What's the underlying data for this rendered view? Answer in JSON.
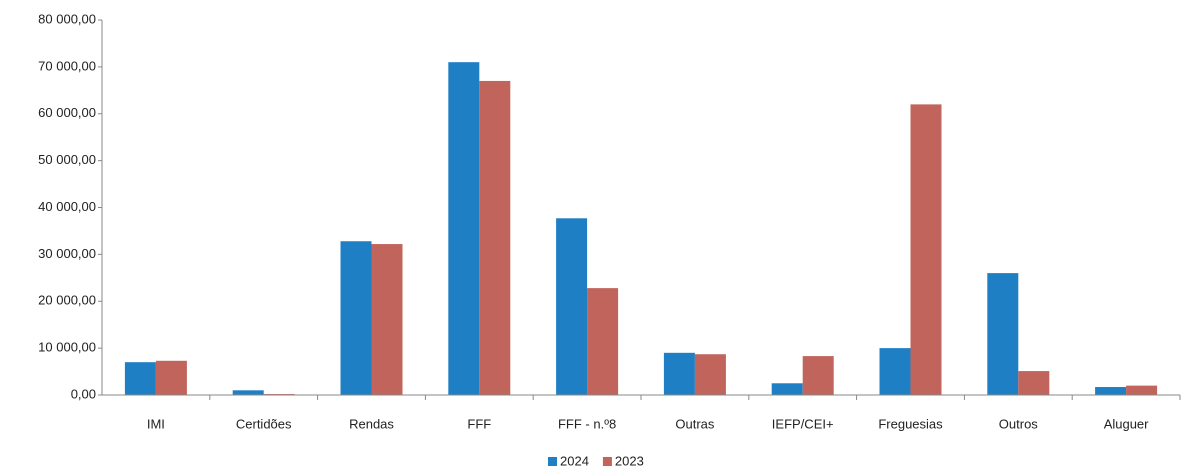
{
  "chart_data": {
    "type": "bar",
    "categories": [
      "IMI",
      "Certidões",
      "Rendas",
      "FFF",
      "FFF - n.º8",
      "Outras",
      "IEFP/CEI+",
      "Freguesias",
      "Outros",
      "Aluguer"
    ],
    "series": [
      {
        "name": "2024",
        "color": "#1f7fc4",
        "values": [
          7000,
          1000,
          32800,
          71000,
          37700,
          9000,
          2500,
          10000,
          26000,
          1700
        ]
      },
      {
        "name": "2023",
        "color": "#c0645c",
        "values": [
          7300,
          200,
          32200,
          67000,
          22800,
          8700,
          8300,
          62000,
          5100,
          2000
        ]
      }
    ],
    "ylim": [
      0,
      80000
    ],
    "yticks": [
      {
        "value": 0,
        "label": "0,00"
      },
      {
        "value": 10000,
        "label": "10 000,00"
      },
      {
        "value": 20000,
        "label": "20 000,00"
      },
      {
        "value": 30000,
        "label": "30 000,00"
      },
      {
        "value": 40000,
        "label": "40 000,00"
      },
      {
        "value": 50000,
        "label": "50 000,00"
      },
      {
        "value": 60000,
        "label": "60 000,00"
      },
      {
        "value": 70000,
        "label": "70 000,00"
      },
      {
        "value": 80000,
        "label": "80 000,00"
      }
    ],
    "legend": "bottom"
  }
}
